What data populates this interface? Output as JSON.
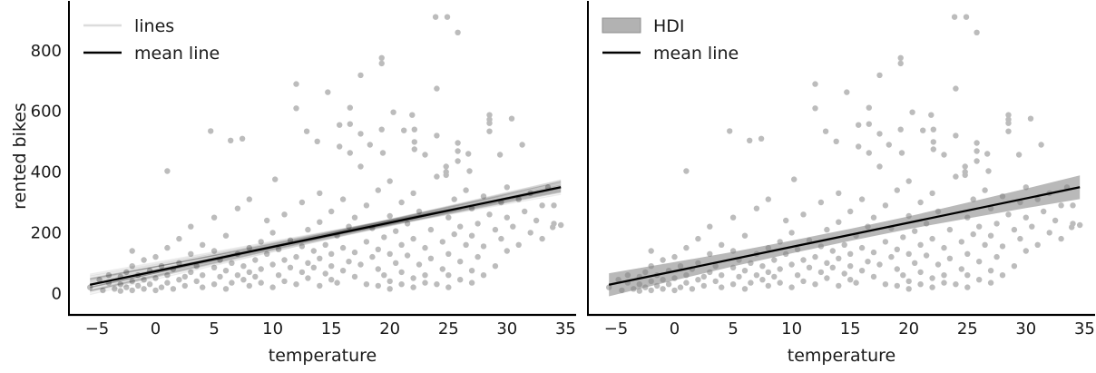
{
  "chart_data": {
    "type": "scatter",
    "title": "",
    "xlabel": "temperature",
    "ylabel": "rented bikes",
    "xlim": [
      -7.4,
      35.9
    ],
    "ylim": [
      -71,
      964
    ],
    "grid": false,
    "legend_position": "upper-left",
    "xticks": [
      -5,
      0,
      5,
      10,
      15,
      20,
      25,
      30,
      35
    ],
    "xtick_labels": [
      "−5",
      "0",
      "5",
      "10",
      "15",
      "20",
      "25",
      "30",
      "35"
    ],
    "yticks": [
      0,
      200,
      400,
      600,
      800
    ],
    "ytick_labels": [
      "0",
      "200",
      "400",
      "600",
      "800"
    ],
    "colors": {
      "scatter": "#bcbcbc",
      "posterior_line": "rgba(0,0,0,0.075)",
      "mean_line": "#000000",
      "hdi_fill": "rgba(128,128,128,0.55)",
      "legend_patch_fill": "#b2b2b2",
      "legend_patch_edge": "#8f8f8f",
      "legend_posterior_line": "#dcdcdc",
      "axis": "#000000",
      "text": "#1a1a1a"
    },
    "panels": [
      {
        "name": "posterior-lines-panel",
        "kind": "lines",
        "xlabel": "temperature",
        "show_y_labels": true,
        "legend": [
          {
            "type": "line",
            "style": "posterior",
            "label": "lines"
          },
          {
            "type": "line",
            "style": "mean",
            "label": "mean line"
          }
        ]
      },
      {
        "name": "hdi-panel",
        "kind": "hdi",
        "xlabel": "temperature",
        "show_y_labels": false,
        "legend": [
          {
            "type": "patch",
            "style": "hdi",
            "label": "HDI"
          },
          {
            "type": "line",
            "style": "mean",
            "label": "mean line"
          }
        ]
      }
    ],
    "line_x_range": [
      -5.6,
      34.6
    ],
    "mean_line": {
      "intercept": 73,
      "slope": 8.0
    },
    "posterior_lines": [
      [
        61.8,
        8.9
      ],
      [
        82.6,
        7.3
      ],
      [
        75.6,
        8.3
      ],
      [
        95,
        7.0
      ],
      [
        56.2,
        8.6
      ],
      [
        78.6,
        7.8
      ],
      [
        53.2,
        9.1
      ],
      [
        88,
        7.5
      ],
      [
        60.4,
        8.2
      ],
      [
        87.2,
        7.1
      ],
      [
        67,
        8.5
      ],
      [
        71.4,
        7.7
      ],
      [
        57.6,
        8.8
      ],
      [
        92.8,
        7.4
      ],
      [
        75.2,
        8.1
      ],
      [
        87.8,
        6.9
      ],
      [
        75.8,
        8.4
      ],
      [
        76.2,
        7.6
      ],
      [
        67.4,
        8.7
      ],
      [
        88.4,
        7.2
      ],
      [
        47,
        9.0
      ],
      [
        86.7,
        7.85
      ],
      [
        66.5,
        8.25
      ],
      [
        87.9,
        7.45
      ],
      [
        57.9,
        8.95
      ],
      [
        67.5,
        7.75
      ],
      [
        69.1,
        8.55
      ],
      [
        98.1,
        7.05
      ],
      [
        65.3,
        8.15
      ],
      [
        81.1,
        7.55
      ],
      [
        66.7,
        8.85
      ],
      [
        78.7,
        7.35
      ],
      [
        67.7,
        8.35
      ],
      [
        101.9,
        6.95
      ],
      [
        57.3,
        8.65
      ],
      [
        86.3,
        7.65
      ],
      [
        53.9,
        8.45
      ],
      [
        89.5,
        7.25
      ],
      [
        60.1,
        9.05
      ],
      [
        70.9,
        7.95
      ]
    ],
    "hdi": {
      "x": [
        -5.6,
        0,
        5,
        10,
        15,
        20,
        25,
        30,
        34.6
      ],
      "lower": [
        -9.8,
        43,
        89,
        132,
        173,
        212,
        247,
        281,
        310.8
      ],
      "upper": [
        66.2,
        103,
        137,
        174,
        213,
        254,
        299,
        345,
        388.8
      ]
    },
    "scatter": {
      "points": [
        [
          -5.6,
          20
        ],
        [
          -4.8,
          45
        ],
        [
          -4.5,
          10
        ],
        [
          -4,
          35
        ],
        [
          -4,
          60
        ],
        [
          -3.5,
          15
        ],
        [
          -3,
          8
        ],
        [
          -3,
          30
        ],
        [
          -3,
          55
        ],
        [
          -2.5,
          20
        ],
        [
          -2.5,
          70
        ],
        [
          -2,
          10
        ],
        [
          -2,
          40
        ],
        [
          -2,
          90
        ],
        [
          -2,
          140
        ],
        [
          -1.5,
          25
        ],
        [
          -1.5,
          60
        ],
        [
          -1,
          15
        ],
        [
          -1,
          45
        ],
        [
          -1,
          110
        ],
        [
          -0.5,
          30
        ],
        [
          -0.5,
          75
        ],
        [
          0,
          10
        ],
        [
          0,
          50
        ],
        [
          0,
          120
        ],
        [
          0.5,
          20
        ],
        [
          0.5,
          90
        ],
        [
          1,
          35
        ],
        [
          1,
          60
        ],
        [
          1,
          150
        ],
        [
          1,
          403
        ],
        [
          1.5,
          15
        ],
        [
          1.5,
          80
        ],
        [
          2,
          45
        ],
        [
          2,
          100
        ],
        [
          2,
          180
        ],
        [
          2.5,
          25
        ],
        [
          2.5,
          55
        ],
        [
          3,
          70
        ],
        [
          3,
          130
        ],
        [
          3,
          220
        ],
        [
          3.5,
          40
        ],
        [
          3.5,
          90
        ],
        [
          4,
          20
        ],
        [
          4,
          60
        ],
        [
          4,
          160
        ],
        [
          4.7,
          535
        ],
        [
          5,
          30
        ],
        [
          5,
          85
        ],
        [
          5,
          140
        ],
        [
          5,
          250
        ],
        [
          5.5,
          55
        ],
        [
          5.5,
          110
        ],
        [
          6,
          15
        ],
        [
          6,
          75
        ],
        [
          6,
          190
        ],
        [
          6.4,
          504
        ],
        [
          6.5,
          35
        ],
        [
          6.5,
          100
        ],
        [
          7,
          60
        ],
        [
          7,
          130
        ],
        [
          7,
          280
        ],
        [
          7.4,
          510
        ],
        [
          7.5,
          45
        ],
        [
          7.5,
          90
        ],
        [
          8,
          25
        ],
        [
          8,
          70
        ],
        [
          8,
          150
        ],
        [
          8,
          310
        ],
        [
          8.5,
          55
        ],
        [
          8.5,
          110
        ],
        [
          9,
          35
        ],
        [
          9,
          80
        ],
        [
          9,
          170
        ],
        [
          9.5,
          130
        ],
        [
          9.5,
          240
        ],
        [
          10,
          20
        ],
        [
          10,
          95
        ],
        [
          10,
          200
        ],
        [
          10.2,
          376
        ],
        [
          10.5,
          60
        ],
        [
          10.5,
          145
        ],
        [
          11,
          40
        ],
        [
          11,
          110
        ],
        [
          11,
          260
        ],
        [
          11.5,
          85
        ],
        [
          11.5,
          175
        ],
        [
          12,
          30
        ],
        [
          12,
          120
        ],
        [
          12,
          610
        ],
        [
          12,
          690
        ],
        [
          12.5,
          70
        ],
        [
          12.5,
          155
        ],
        [
          12.5,
          300
        ],
        [
          12.9,
          534
        ],
        [
          13,
          50
        ],
        [
          13,
          100
        ],
        [
          13,
          210
        ],
        [
          13.5,
          85
        ],
        [
          13.5,
          140
        ],
        [
          13.8,
          501
        ],
        [
          14,
          25
        ],
        [
          14,
          115
        ],
        [
          14,
          235
        ],
        [
          14,
          330
        ],
        [
          14.5,
          65
        ],
        [
          14.5,
          160
        ],
        [
          14.7,
          663
        ],
        [
          15,
          45
        ],
        [
          15,
          90
        ],
        [
          15,
          130
        ],
        [
          15,
          270
        ],
        [
          15.5,
          35
        ],
        [
          15.5,
          190
        ],
        [
          15.7,
          484
        ],
        [
          15.7,
          555
        ],
        [
          16,
          75
        ],
        [
          16,
          150
        ],
        [
          16,
          310
        ],
        [
          16.5,
          105
        ],
        [
          16.5,
          220
        ],
        [
          16.6,
          463
        ],
        [
          16.6,
          558
        ],
        [
          16.6,
          612
        ],
        [
          17,
          55
        ],
        [
          17,
          135
        ],
        [
          17,
          250
        ],
        [
          17.5,
          95
        ],
        [
          17.5,
          418
        ],
        [
          17.5,
          526
        ],
        [
          17.5,
          719
        ],
        [
          18,
          30
        ],
        [
          18,
          170
        ],
        [
          18,
          290
        ],
        [
          18.3,
          490
        ],
        [
          18.5,
          120
        ],
        [
          18.5,
          215
        ],
        [
          19,
          25
        ],
        [
          19,
          80
        ],
        [
          19,
          145
        ],
        [
          19,
          340
        ],
        [
          19.3,
          540
        ],
        [
          19.3,
          758
        ],
        [
          19.3,
          776
        ],
        [
          19.4,
          463
        ],
        [
          19.5,
          60
        ],
        [
          19.5,
          185
        ],
        [
          20,
          15
        ],
        [
          20,
          40
        ],
        [
          20,
          130
        ],
        [
          20,
          255
        ],
        [
          20,
          370
        ],
        [
          20.3,
          597
        ],
        [
          20.5,
          100
        ],
        [
          20.5,
          205
        ],
        [
          21,
          30
        ],
        [
          21,
          70
        ],
        [
          21,
          160
        ],
        [
          21,
          300
        ],
        [
          21.2,
          537
        ],
        [
          21.5,
          125
        ],
        [
          21.5,
          230
        ],
        [
          21.9,
          588
        ],
        [
          22,
          20
        ],
        [
          22,
          50
        ],
        [
          22,
          180
        ],
        [
          22,
          330
        ],
        [
          22.1,
          475
        ],
        [
          22.1,
          499
        ],
        [
          22.1,
          540
        ],
        [
          22.5,
          95
        ],
        [
          22.5,
          270
        ],
        [
          23,
          35
        ],
        [
          23,
          60
        ],
        [
          23,
          150
        ],
        [
          23,
          457
        ],
        [
          23.5,
          115
        ],
        [
          23.5,
          210
        ],
        [
          23.9,
          911
        ],
        [
          24,
          30
        ],
        [
          24,
          385
        ],
        [
          24,
          520
        ],
        [
          24,
          675
        ],
        [
          24.5,
          80
        ],
        [
          24.5,
          170
        ],
        [
          24.8,
          390
        ],
        [
          24.8,
          400
        ],
        [
          24.8,
          418
        ],
        [
          24.9,
          911
        ],
        [
          25,
          20
        ],
        [
          25,
          60
        ],
        [
          25,
          130
        ],
        [
          25,
          250
        ],
        [
          25.5,
          195
        ],
        [
          25.5,
          310
        ],
        [
          25.8,
          436
        ],
        [
          25.8,
          469
        ],
        [
          25.8,
          496
        ],
        [
          25.8,
          860
        ],
        [
          26,
          45
        ],
        [
          26,
          105
        ],
        [
          26,
          220
        ],
        [
          26.5,
          160
        ],
        [
          26.5,
          340
        ],
        [
          26.7,
          460
        ],
        [
          26.8,
          403
        ],
        [
          27,
          35
        ],
        [
          27,
          75
        ],
        [
          27,
          190
        ],
        [
          27,
          280
        ],
        [
          27.5,
          120
        ],
        [
          27.5,
          230
        ],
        [
          28,
          60
        ],
        [
          28,
          155
        ],
        [
          28,
          320
        ],
        [
          28.5,
          260
        ],
        [
          28.5,
          534
        ],
        [
          28.5,
          561
        ],
        [
          28.5,
          573
        ],
        [
          28.5,
          588
        ],
        [
          29,
          90
        ],
        [
          29,
          210
        ],
        [
          29.4,
          457
        ],
        [
          29.5,
          180
        ],
        [
          29.5,
          300
        ],
        [
          30,
          140
        ],
        [
          30,
          250
        ],
        [
          30,
          350
        ],
        [
          30.4,
          576
        ],
        [
          30.5,
          220
        ],
        [
          31,
          160
        ],
        [
          31,
          310
        ],
        [
          31.3,
          490
        ],
        [
          31.5,
          270
        ],
        [
          32,
          200
        ],
        [
          32,
          330
        ],
        [
          32.5,
          240
        ],
        [
          33,
          180
        ],
        [
          33,
          290
        ],
        [
          33.5,
          350
        ],
        [
          33.9,
          218
        ],
        [
          34,
          230
        ],
        [
          34,
          290
        ],
        [
          34.6,
          225
        ]
      ]
    }
  }
}
